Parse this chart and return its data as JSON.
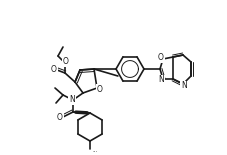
{
  "background_color": "#ffffff",
  "figsize": [
    2.28,
    1.55
  ],
  "dpi": 100,
  "line_color": "#1a1a1a",
  "lw": 1.2,
  "lw_double": 0.7,
  "font_size": 5.5,
  "font_size_small": 4.8
}
